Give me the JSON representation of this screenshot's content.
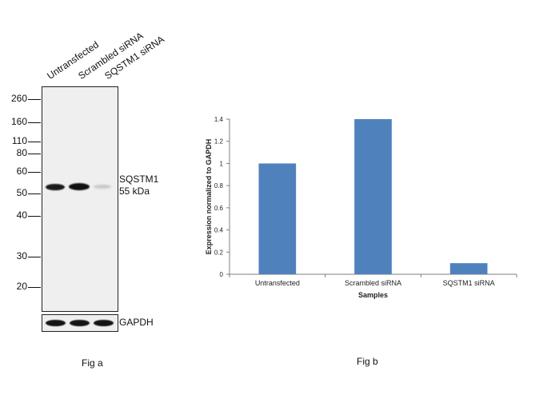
{
  "western_blot": {
    "lanes": [
      "Untransfected",
      "Scrambled siRNA",
      "SQSTM1  siRNA"
    ],
    "mw_markers": [
      "260",
      "160",
      "110",
      "80",
      "60",
      "50",
      "40",
      "30",
      "20"
    ],
    "target_label": "SQSTM1",
    "target_size": "55 kDa",
    "control_label": "GAPDH",
    "caption": "Fig a"
  },
  "chart_data": {
    "type": "bar",
    "categories": [
      "Untransfected",
      "Scrambled siRNA",
      "SQSTM1 siRNA"
    ],
    "values": [
      1.0,
      1.4,
      0.1
    ],
    "title": "",
    "xlabel": "Samples",
    "ylabel": "Expression normalized to GAPDH",
    "ylim": [
      0,
      1.4
    ],
    "yticks": [
      "0",
      "0.2",
      "0.4",
      "0.6",
      "0.8",
      "1",
      "1.2",
      "1.4"
    ],
    "bar_color": "#4f81bd",
    "grid": false,
    "legend": "none",
    "caption": "Fig b"
  }
}
